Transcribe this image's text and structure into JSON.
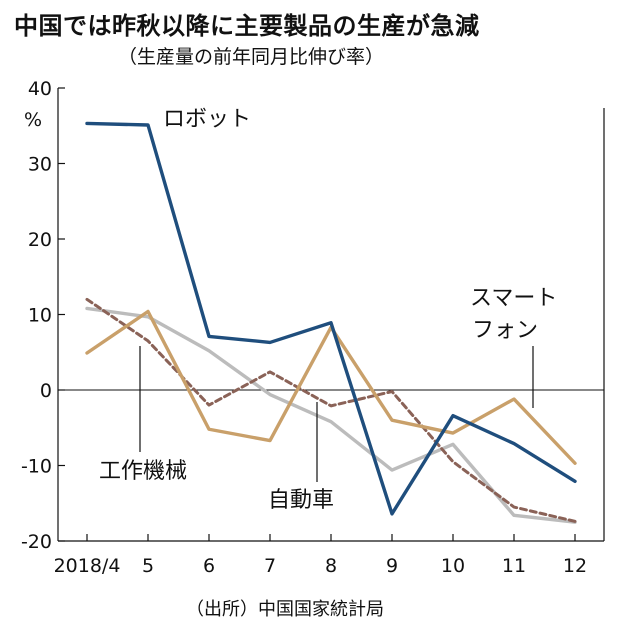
{
  "chart_data": {
    "type": "line",
    "title": "中国では昨秋以降に主要製品の生産が急減",
    "subtitle": "（生産量の前年同月比伸び率）",
    "source": "（出所）中国国家統計局",
    "ylabel": "%",
    "ylim": [
      -20,
      40
    ],
    "yticks": [
      40,
      30,
      20,
      10,
      0,
      -10,
      -20
    ],
    "categories": [
      "2018/4",
      "5",
      "6",
      "7",
      "8",
      "9",
      "10",
      "11",
      "12"
    ],
    "series": [
      {
        "name": "ロボット",
        "color": "#1f4e7d",
        "style": "solid",
        "values": [
          35.3,
          35.1,
          7.1,
          6.3,
          8.9,
          -16.4,
          -3.4,
          -7.1,
          -12.1
        ]
      },
      {
        "name": "スマートフォン",
        "color": "#c9a06a",
        "style": "solid",
        "values": [
          4.9,
          10.4,
          -5.2,
          -6.7,
          8.3,
          -4.0,
          -5.7,
          -1.2,
          -9.7
        ]
      },
      {
        "name": "工作機械",
        "color": "#8a6257",
        "style": "dashed",
        "values": [
          12.0,
          6.5,
          -2.0,
          2.4,
          -2.1,
          -0.2,
          -9.5,
          -15.5,
          -17.4
        ]
      },
      {
        "name": "自動車",
        "color": "#bcbcbc",
        "style": "solid",
        "values": [
          10.8,
          9.7,
          5.2,
          -0.6,
          -4.2,
          -10.6,
          -7.2,
          -16.6,
          -17.5
        ]
      }
    ],
    "annotations": {
      "robot": "ロボット",
      "smartphone_line1": "スマート",
      "smartphone_line2": "フォン",
      "machine": "工作機械",
      "auto": "自動車"
    },
    "grid": false,
    "legend": "none"
  }
}
